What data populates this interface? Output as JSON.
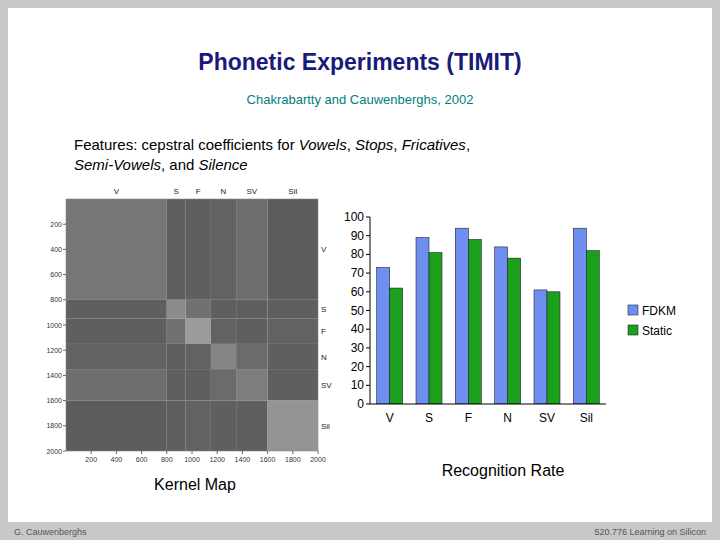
{
  "slide": {
    "title": "Phonetic Experiments (TIMIT)",
    "subtitle": "Chakrabartty and Cauwenberghs, 2002",
    "features": [
      "Features: cepstral coefficients for Vowels, Stops, Fricatives,",
      "Semi-Vowels, and Silence"
    ],
    "emphasis": [
      "Vowels",
      "Stops",
      "Fricatives",
      "Semi-Vowels",
      "Silence"
    ],
    "footer_left": "G. Cauwenberghs",
    "footer_right": "520.776 Learning on Silicon"
  },
  "chart_data": [
    {
      "type": "heatmap",
      "title": "Kernel Map",
      "categories": [
        "V",
        "S",
        "F",
        "N",
        "SV",
        "Sil"
      ],
      "class_edges": [
        0,
        800,
        950,
        1150,
        1350,
        1600,
        2000
      ],
      "cells": [
        [
          0.45,
          0.3,
          0.3,
          0.32,
          0.4,
          0.28
        ],
        [
          0.3,
          0.6,
          0.42,
          0.3,
          0.3,
          0.3
        ],
        [
          0.3,
          0.42,
          0.7,
          0.32,
          0.3,
          0.32
        ],
        [
          0.32,
          0.3,
          0.32,
          0.55,
          0.38,
          0.3
        ],
        [
          0.4,
          0.3,
          0.3,
          0.38,
          0.5,
          0.3
        ],
        [
          0.28,
          0.3,
          0.32,
          0.3,
          0.3,
          0.65
        ]
      ],
      "xlim": [
        0,
        2000
      ],
      "ylim": [
        2000,
        0
      ],
      "xticks": [
        200,
        400,
        600,
        800,
        1000,
        1200,
        1400,
        1600,
        1800,
        2000
      ],
      "yticks": [
        200,
        400,
        600,
        800,
        1000,
        1200,
        1400,
        1600,
        1800,
        2000
      ]
    },
    {
      "type": "bar",
      "title": "Recognition Rate",
      "categories": [
        "V",
        "S",
        "F",
        "N",
        "SV",
        "Sil"
      ],
      "series": [
        {
          "name": "FDKM",
          "color": "#6f8ff0",
          "values": [
            73,
            89,
            94,
            84,
            61,
            94
          ]
        },
        {
          "name": "Static",
          "color": "#1aa01a",
          "values": [
            62,
            81,
            88,
            78,
            60,
            82
          ]
        }
      ],
      "ylim": [
        0,
        100
      ],
      "yticks": [
        0,
        10,
        20,
        30,
        40,
        50,
        60,
        70,
        80,
        90,
        100
      ],
      "grid": false,
      "legend": "right"
    }
  ]
}
